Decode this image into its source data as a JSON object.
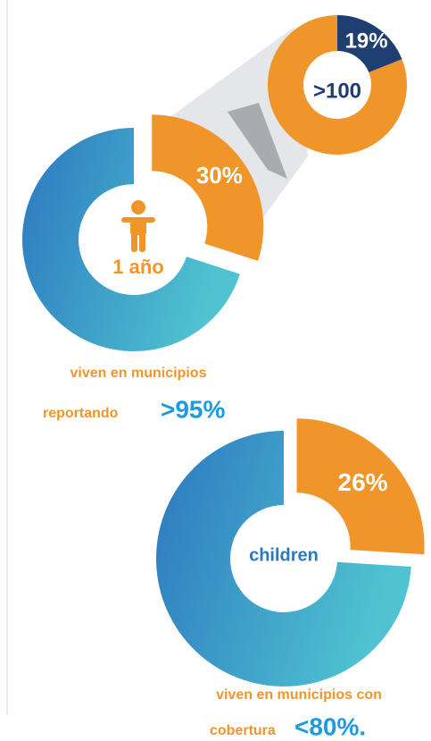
{
  "chart_data": [
    {
      "type": "donut",
      "values": [
        30,
        70
      ],
      "value_labels": [
        "30%",
        null
      ],
      "colors": [
        "#f0952a",
        "url(#blueGrad)"
      ],
      "center_label": "1 año",
      "caption": [
        "viven en municipios",
        "reportando"
      ],
      "highlight": ">95%"
    },
    {
      "type": "donut",
      "values": [
        19,
        81
      ],
      "value_labels": [
        "19%",
        null
      ],
      "colors": [
        "#1f3f73",
        "#f0952a"
      ],
      "center_label": ">100"
    },
    {
      "type": "donut",
      "values": [
        26,
        74
      ],
      "value_labels": [
        "26%",
        null
      ],
      "colors": [
        "#f0952a",
        "url(#blueGrad)"
      ],
      "center_label": "children",
      "caption": [
        "viven en municipios con",
        "cobertura"
      ],
      "highlight": "<80%."
    }
  ]
}
